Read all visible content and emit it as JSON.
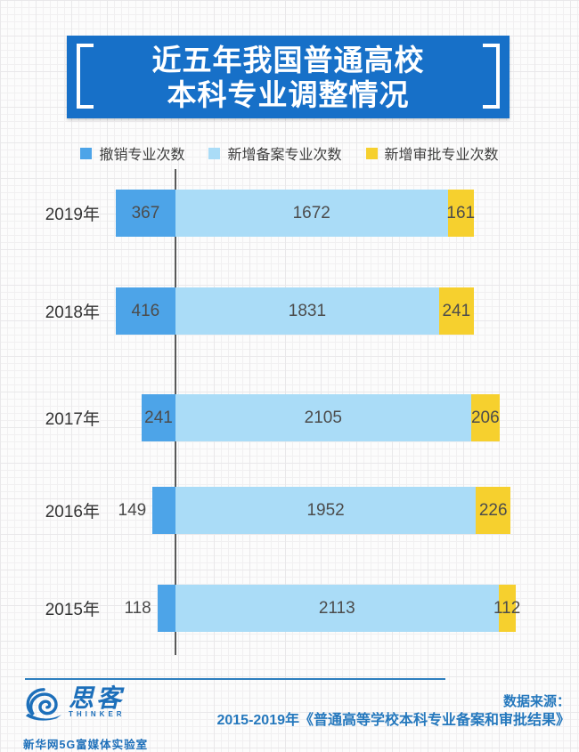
{
  "title": {
    "line1": "近五年我国普通高校",
    "line2": "本科专业调整情况"
  },
  "colors": {
    "title_bg": "#1770c8",
    "cancelled": "#4da4e8",
    "filed": "#aadcf7",
    "approved": "#f6d02e",
    "axis": "#595959",
    "value_text": "#4c4c4c",
    "footer_blue": "#2578bd"
  },
  "legend": [
    {
      "label": "撤销专业次数",
      "color": "#4da4e8"
    },
    {
      "label": "新增备案专业次数",
      "color": "#aadcf7"
    },
    {
      "label": "新增审批专业次数",
      "color": "#f6d02e"
    }
  ],
  "chart_data": {
    "type": "bar",
    "orientation": "horizontal-stacked",
    "title": "近五年我国普通高校本科专业调整情况",
    "categories": [
      "2019年",
      "2018年",
      "2017年",
      "2016年",
      "2015年"
    ],
    "series": [
      {
        "name": "撤销专业次数",
        "color": "#4da4e8",
        "values": [
          367,
          416,
          241,
          149,
          118
        ]
      },
      {
        "name": "新增备案专业次数",
        "color": "#aadcf7",
        "values": [
          1672,
          1831,
          2105,
          1952,
          2113
        ]
      },
      {
        "name": "新增审批专业次数",
        "color": "#f6d02e",
        "values": [
          161,
          241,
          206,
          226,
          112
        ]
      }
    ],
    "layout_hint": "each row equal total length; cancelled segment extends left of vertical baseline, new segments extend right; all segment values labelled on bars",
    "legend_position": "top",
    "grid": false
  },
  "footer": {
    "logo_cn": "思客",
    "logo_en": "THINKER",
    "logo_sub": "新华网5G富媒体实验室",
    "source_label": "数据来源：",
    "source_text": "2015-2019年《普通高等学校本科专业备案和审批结果》"
  }
}
